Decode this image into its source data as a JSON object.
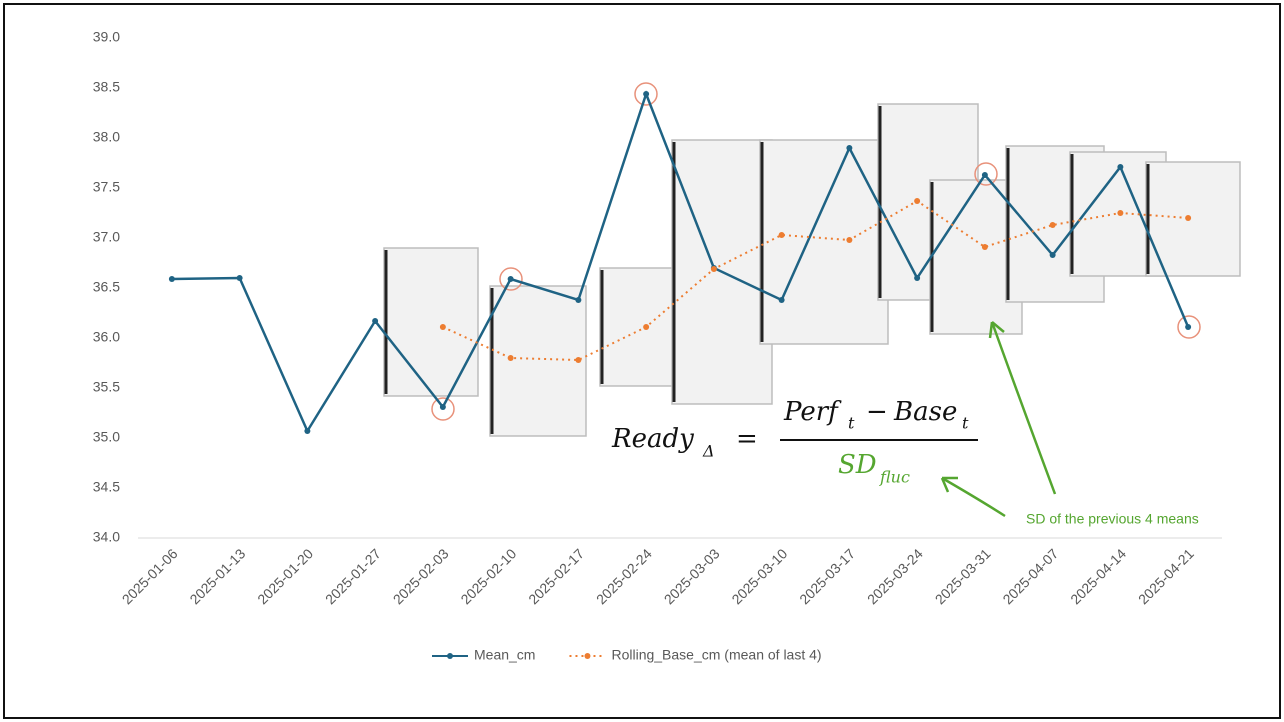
{
  "chart_data": {
    "type": "line",
    "categories": [
      "2025-01-06",
      "2025-01-13",
      "2025-01-20",
      "2025-01-27",
      "2025-02-03",
      "2025-02-10",
      "2025-02-17",
      "2025-02-24",
      "2025-03-03",
      "2025-03-10",
      "2025-03-17",
      "2025-03-24",
      "2025-03-31",
      "2025-04-07",
      "2025-04-14",
      "2025-04-21"
    ],
    "series": [
      {
        "name": "Mean_cm",
        "color": "#1f6384",
        "values": [
          36.59,
          36.6,
          35.07,
          36.17,
          35.31,
          36.59,
          36.38,
          38.44,
          36.7,
          36.38,
          37.9,
          36.6,
          37.63,
          36.83,
          37.71,
          36.11
        ]
      },
      {
        "name": "Rolling_Base_cm (mean of last 4)",
        "color": "#ed7d31",
        "values": [
          null,
          null,
          null,
          null,
          36.11,
          35.8,
          35.78,
          36.11,
          36.69,
          37.03,
          36.98,
          37.37,
          36.91,
          37.13,
          37.25,
          37.2
        ]
      }
    ],
    "ylim": [
      34,
      39
    ],
    "yticks": [
      {
        "value": 34,
        "label": "34.0"
      },
      34.5,
      {
        "value": 35,
        "label": "35.0"
      },
      35.5,
      {
        "value": 36,
        "label": "36.0"
      },
      36.5,
      {
        "value": 37,
        "label": "37.0"
      },
      37.5,
      {
        "value": 38,
        "label": "38.0"
      },
      38.5,
      {
        "value": 39,
        "label": "39.0"
      }
    ],
    "grid": false,
    "formula": {
      "lhs": "Ready",
      "lhs_sub": "Δ",
      "eq": "=",
      "perf": "Perf",
      "perf_sub": "t",
      "minus": "−",
      "base": "Base",
      "base_sub": "t",
      "den": "SD",
      "den_sub": "fluc"
    },
    "annotation": "SD of the previous 4 means"
  }
}
